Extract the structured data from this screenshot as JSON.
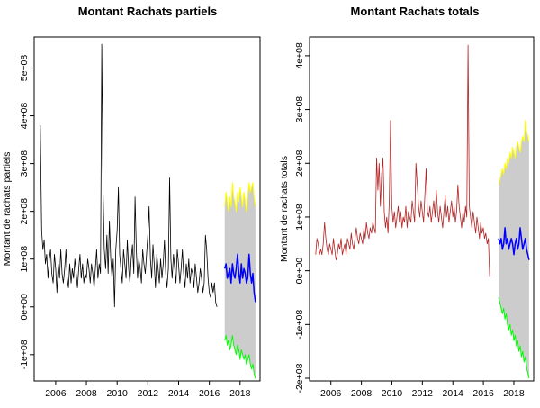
{
  "chart_data": [
    {
      "type": "line",
      "title": "Montant Rachats partiels",
      "xlabel": "",
      "ylabel": "Montant de rachats partiels",
      "xlim": [
        2004.6,
        2019.3
      ],
      "ylim": [
        -155000000.0,
        565000000.0
      ],
      "x_ticks": [
        2006,
        2008,
        2010,
        2012,
        2014,
        2016,
        2018
      ],
      "x_tick_labels": [
        "2006",
        "2008",
        "2010",
        "2012",
        "2014",
        "2016",
        "2018"
      ],
      "y_ticks": [
        -100000000.0,
        0,
        100000000.0,
        200000000.0,
        300000000.0,
        400000000.0,
        500000000.0
      ],
      "y_tick_labels": [
        "-1e+08",
        "0e+00",
        "1e+08",
        "2e+08",
        "3e+08",
        "4e+08",
        "5e+08"
      ],
      "colors": {
        "history": "#000000",
        "forecast": "#0000ff",
        "upper": "#ffff00",
        "lower": "#00ff00",
        "band": "#cccccc"
      },
      "history_start": 2005.0,
      "history_step": 0.0833,
      "history": [
        380000000.0,
        160000000.0,
        120000000.0,
        140000000.0,
        90000000.0,
        110000000.0,
        60000000.0,
        100000000.0,
        120000000.0,
        70000000.0,
        50000000.0,
        110000000.0,
        80000000.0,
        30000000.0,
        90000000.0,
        60000000.0,
        120000000.0,
        70000000.0,
        50000000.0,
        80000000.0,
        120000000.0,
        60000000.0,
        40000000.0,
        90000000.0,
        50000000.0,
        80000000.0,
        60000000.0,
        100000000.0,
        70000000.0,
        40000000.0,
        80000000.0,
        110000000.0,
        60000000.0,
        90000000.0,
        50000000.0,
        70000000.0,
        60000000.0,
        100000000.0,
        80000000.0,
        50000000.0,
        90000000.0,
        70000000.0,
        40000000.0,
        80000000.0,
        120000000.0,
        60000000.0,
        90000000.0,
        70000000.0,
        550000000.0,
        250000000.0,
        120000000.0,
        80000000.0,
        150000000.0,
        70000000.0,
        180000000.0,
        100000000.0,
        60000000.0,
        100000000.0,
        0.0,
        120000000.0,
        160000000.0,
        250000000.0,
        110000000.0,
        80000000.0,
        50000000.0,
        120000000.0,
        90000000.0,
        60000000.0,
        140000000.0,
        80000000.0,
        50000000.0,
        100000000.0,
        130000000.0,
        70000000.0,
        230000000.0,
        120000000.0,
        60000000.0,
        100000000.0,
        80000000.0,
        50000000.0,
        120000000.0,
        90000000.0,
        70000000.0,
        110000000.0,
        150000000.0,
        210000000.0,
        100000000.0,
        60000000.0,
        130000000.0,
        90000000.0,
        40000000.0,
        110000000.0,
        80000000.0,
        50000000.0,
        100000000.0,
        60000000.0,
        90000000.0,
        140000000.0,
        70000000.0,
        40000000.0,
        80000000.0,
        270000000.0,
        100000000.0,
        60000000.0,
        110000000.0,
        80000000.0,
        50000000.0,
        120000000.0,
        90000000.0,
        50000000.0,
        80000000.0,
        120000000.0,
        70000000.0,
        40000000.0,
        90000000.0,
        60000000.0,
        100000000.0,
        50000000.0,
        80000000.0,
        70000000.0,
        40000000.0,
        90000000.0,
        60000000.0,
        30000000.0,
        50000000.0,
        80000000.0,
        60000000.0,
        30000000.0,
        50000000.0,
        150000000.0,
        120000000.0,
        60000000.0,
        30000000.0,
        20000000.0,
        50000000.0,
        30000000.0,
        50000000.0,
        10000000.0,
        0.0
      ],
      "forecast_start": 2017.0,
      "forecast_step": 0.0833,
      "forecast": [
        80000000.0,
        90000000.0,
        60000000.0,
        70000000.0,
        80000000.0,
        50000000.0,
        90000000.0,
        70000000.0,
        60000000.0,
        80000000.0,
        110000000.0,
        70000000.0,
        50000000.0,
        90000000.0,
        60000000.0,
        80000000.0,
        70000000.0,
        50000000.0,
        60000000.0,
        110000000.0,
        70000000.0,
        50000000.0,
        70000000.0,
        30000000.0,
        10000000.0
      ],
      "upper": [
        210000000.0,
        240000000.0,
        220000000.0,
        200000000.0,
        230000000.0,
        210000000.0,
        260000000.0,
        230000000.0,
        220000000.0,
        200000000.0,
        240000000.0,
        220000000.0,
        250000000.0,
        230000000.0,
        210000000.0,
        240000000.0,
        220000000.0,
        200000000.0,
        230000000.0,
        260000000.0,
        240000000.0,
        250000000.0,
        260000000.0,
        230000000.0,
        210000000.0
      ],
      "lower": [
        -70000000.0,
        -60000000.0,
        -80000000.0,
        -70000000.0,
        -90000000.0,
        -80000000.0,
        -60000000.0,
        -80000000.0,
        -90000000.0,
        -100000000.0,
        -80000000.0,
        -90000000.0,
        -110000000.0,
        -90000000.0,
        -100000000.0,
        -110000000.0,
        -100000000.0,
        -120000000.0,
        -110000000.0,
        -100000000.0,
        -120000000.0,
        -130000000.0,
        -120000000.0,
        -140000000.0,
        -150000000.0
      ]
    },
    {
      "type": "line",
      "title": "Montant Rachats totals",
      "xlabel": "",
      "ylabel": "Montant de rachats totals",
      "xlim": [
        2004.6,
        2019.3
      ],
      "ylim": [
        -205000000.0,
        435000000.0
      ],
      "x_ticks": [
        2006,
        2008,
        2010,
        2012,
        2014,
        2016,
        2018
      ],
      "x_tick_labels": [
        "2006",
        "2008",
        "2010",
        "2012",
        "2014",
        "2016",
        "2018"
      ],
      "y_ticks": [
        -200000000.0,
        -100000000.0,
        0,
        100000000.0,
        200000000.0,
        300000000.0,
        400000000.0
      ],
      "y_tick_labels": [
        "-2e+08",
        "-1e+08",
        "0e+00",
        "1e+08",
        "2e+08",
        "3e+08",
        "4e+08"
      ],
      "colors": {
        "history": "#b22222",
        "forecast": "#0000ff",
        "upper": "#ffff00",
        "lower": "#00ff00",
        "band": "#cccccc"
      },
      "history_start": 2005.0,
      "history_step": 0.0833,
      "history": [
        30000000.0,
        60000000.0,
        50000000.0,
        30000000.0,
        40000000.0,
        30000000.0,
        50000000.0,
        90000000.0,
        60000000.0,
        40000000.0,
        30000000.0,
        50000000.0,
        40000000.0,
        30000000.0,
        60000000.0,
        40000000.0,
        20000000.0,
        30000000.0,
        50000000.0,
        40000000.0,
        60000000.0,
        30000000.0,
        40000000.0,
        50000000.0,
        30000000.0,
        60000000.0,
        50000000.0,
        40000000.0,
        70000000.0,
        50000000.0,
        40000000.0,
        60000000.0,
        80000000.0,
        60000000.0,
        50000000.0,
        70000000.0,
        60000000.0,
        50000000.0,
        80000000.0,
        60000000.0,
        90000000.0,
        70000000.0,
        60000000.0,
        80000000.0,
        70000000.0,
        90000000.0,
        80000000.0,
        70000000.0,
        210000000.0,
        150000000.0,
        200000000.0,
        120000000.0,
        180000000.0,
        210000000.0,
        110000000.0,
        80000000.0,
        100000000.0,
        70000000.0,
        130000000.0,
        280000000.0,
        120000000.0,
        90000000.0,
        110000000.0,
        80000000.0,
        100000000.0,
        120000000.0,
        90000000.0,
        110000000.0,
        80000000.0,
        100000000.0,
        90000000.0,
        120000000.0,
        80000000.0,
        110000000.0,
        100000000.0,
        90000000.0,
        130000000.0,
        110000000.0,
        90000000.0,
        200000000.0,
        160000000.0,
        120000000.0,
        100000000.0,
        130000000.0,
        110000000.0,
        90000000.0,
        140000000.0,
        190000000.0,
        110000000.0,
        100000000.0,
        120000000.0,
        90000000.0,
        110000000.0,
        130000000.0,
        100000000.0,
        150000000.0,
        110000000.0,
        90000000.0,
        120000000.0,
        100000000.0,
        80000000.0,
        110000000.0,
        140000000.0,
        100000000.0,
        120000000.0,
        90000000.0,
        110000000.0,
        130000000.0,
        100000000.0,
        120000000.0,
        90000000.0,
        110000000.0,
        160000000.0,
        120000000.0,
        100000000.0,
        80000000.0,
        110000000.0,
        90000000.0,
        120000000.0,
        100000000.0,
        420000000.0,
        120000000.0,
        100000000.0,
        80000000.0,
        110000000.0,
        90000000.0,
        70000000.0,
        100000000.0,
        80000000.0,
        60000000.0,
        90000000.0,
        70000000.0,
        80000000.0,
        60000000.0,
        70000000.0,
        50000000.0,
        60000000.0,
        -10000000.0
      ],
      "forecast_start": 2017.0,
      "forecast_step": 0.0833,
      "forecast": [
        60000000.0,
        50000000.0,
        60000000.0,
        40000000.0,
        50000000.0,
        80000000.0,
        50000000.0,
        60000000.0,
        40000000.0,
        50000000.0,
        60000000.0,
        50000000.0,
        30000000.0,
        50000000.0,
        60000000.0,
        40000000.0,
        50000000.0,
        80000000.0,
        60000000.0,
        40000000.0,
        50000000.0,
        60000000.0,
        40000000.0,
        30000000.0,
        20000000.0
      ],
      "upper": [
        160000000.0,
        170000000.0,
        180000000.0,
        190000000.0,
        180000000.0,
        200000000.0,
        190000000.0,
        210000000.0,
        200000000.0,
        220000000.0,
        210000000.0,
        230000000.0,
        220000000.0,
        210000000.0,
        230000000.0,
        240000000.0,
        230000000.0,
        220000000.0,
        240000000.0,
        250000000.0,
        240000000.0,
        280000000.0,
        260000000.0,
        250000000.0,
        240000000.0
      ],
      "lower": [
        -50000000.0,
        -60000000.0,
        -70000000.0,
        -80000000.0,
        -70000000.0,
        -90000000.0,
        -80000000.0,
        -100000000.0,
        -110000000.0,
        -100000000.0,
        -120000000.0,
        -110000000.0,
        -130000000.0,
        -120000000.0,
        -140000000.0,
        -130000000.0,
        -150000000.0,
        -140000000.0,
        -160000000.0,
        -150000000.0,
        -170000000.0,
        -160000000.0,
        -180000000.0,
        -190000000.0,
        -200000000.0
      ]
    }
  ]
}
